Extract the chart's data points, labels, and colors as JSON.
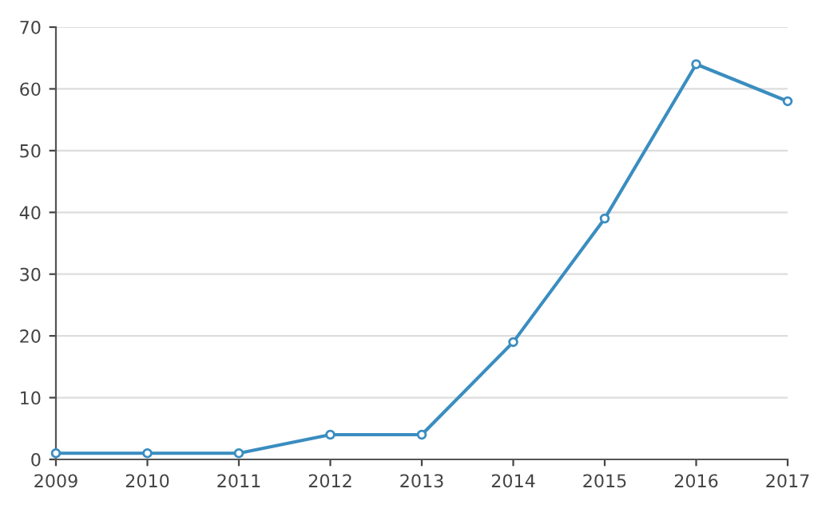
{
  "chart_data": {
    "type": "line",
    "x": [
      2009,
      2010,
      2011,
      2012,
      2013,
      2014,
      2015,
      2016,
      2017
    ],
    "series": [
      {
        "color": "#3a8dc0",
        "values": [
          1,
          1,
          1,
          4,
          4,
          19,
          39,
          64,
          58
        ]
      }
    ],
    "xlim": [
      2009,
      2017
    ],
    "xticks": [
      2009,
      2010,
      2011,
      2012,
      2013,
      2014,
      2015,
      2016,
      2017
    ],
    "ylim": [
      0,
      70
    ],
    "yticks": [
      0,
      10,
      20,
      30,
      40,
      50,
      60,
      70
    ],
    "grid": "y",
    "marker": "circle",
    "line_style": "solid",
    "legend": false
  }
}
